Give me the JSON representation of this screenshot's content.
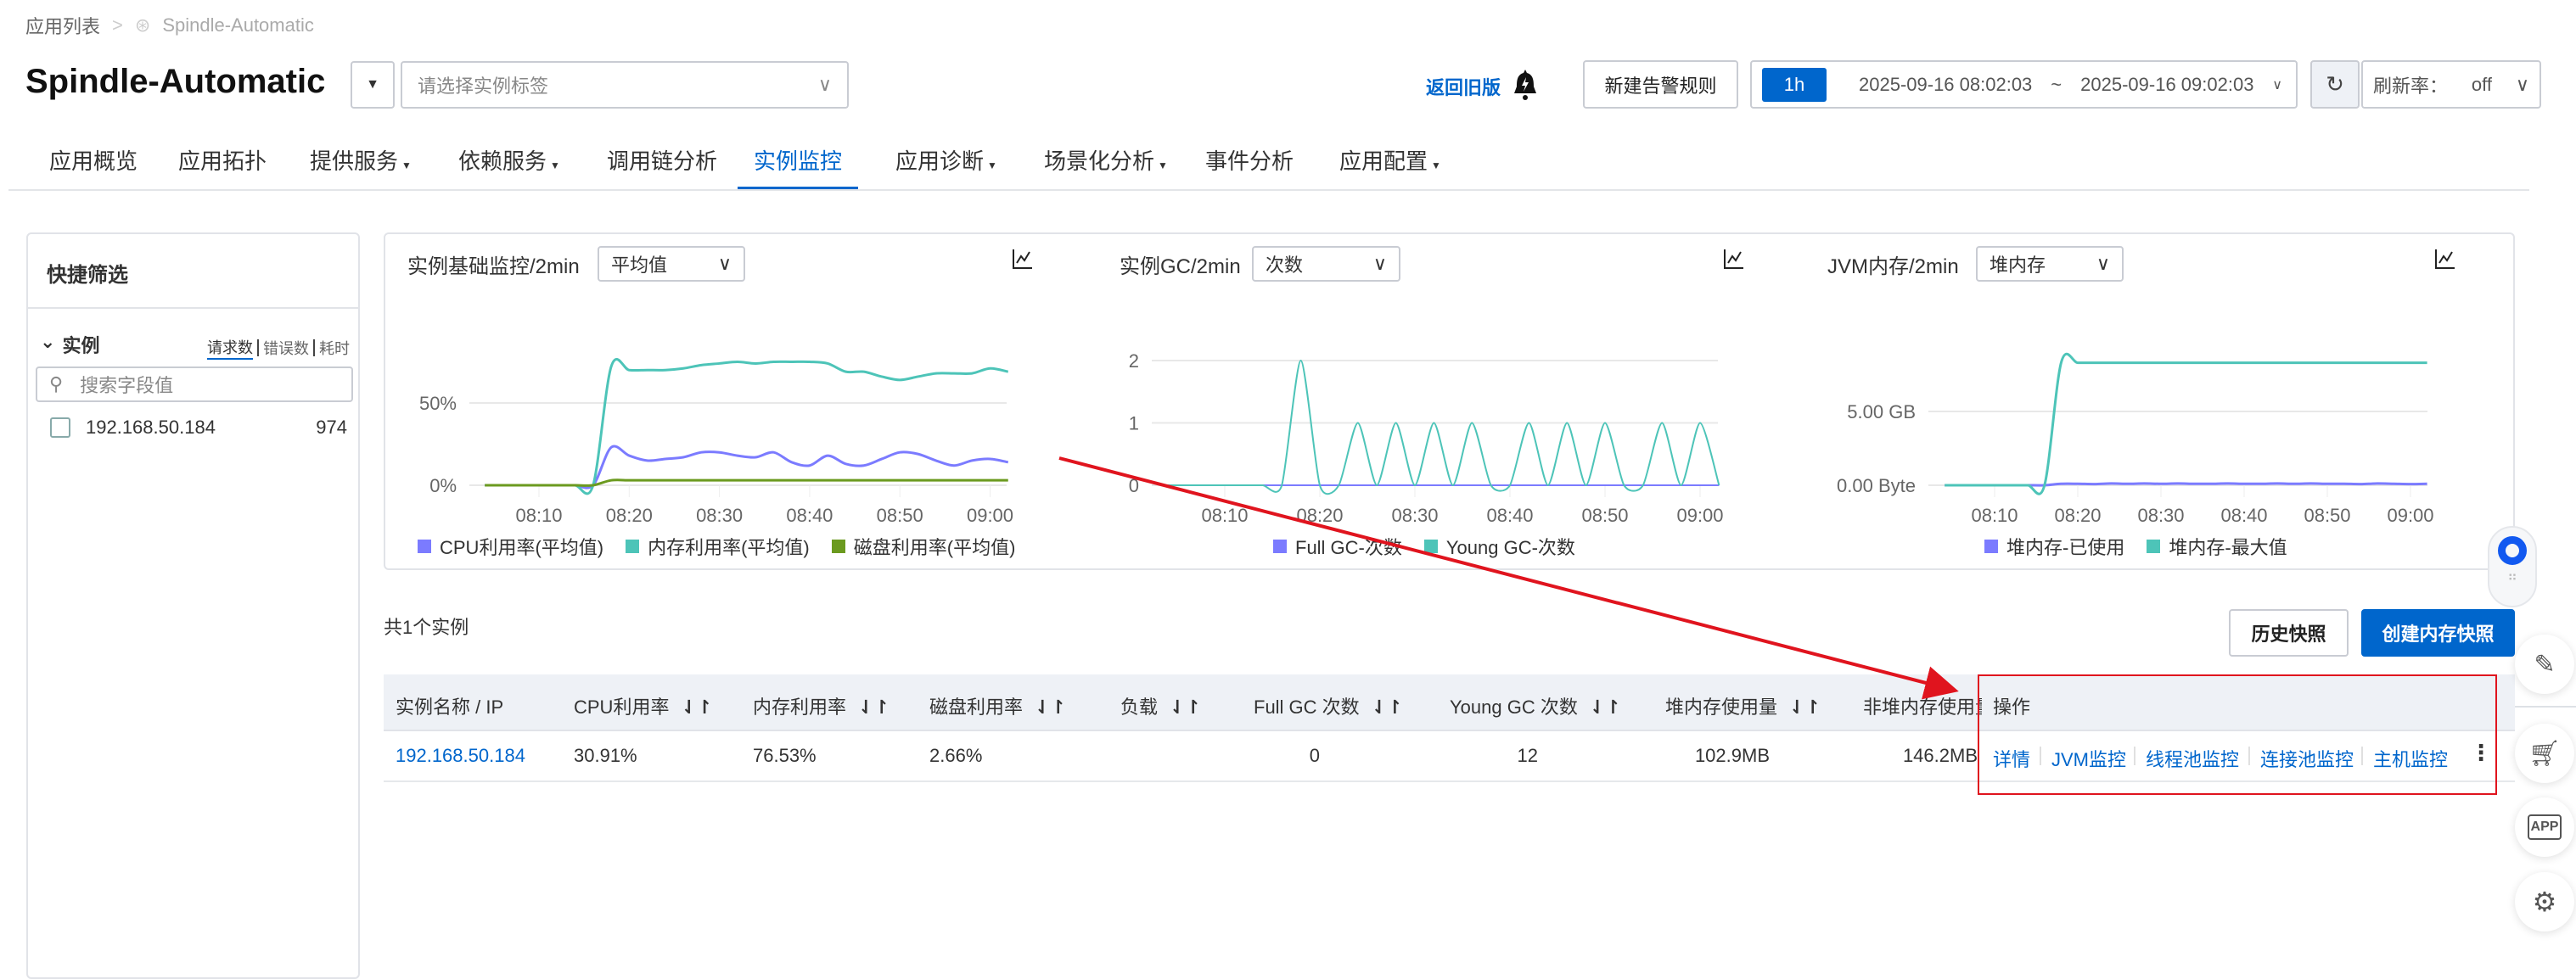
{
  "breadcrumb": {
    "root": "应用列表",
    "current": "Spindle-Automatic"
  },
  "header": {
    "app_title": "Spindle-Automatic",
    "tag_placeholder": "请选择实例标签",
    "back_old": "返回旧版",
    "new_alert": "新建告警规则",
    "time_preset": "1h",
    "time_start": "2025-09-16 08:02:03",
    "time_sep": "~",
    "time_end": "2025-09-16 09:02:03",
    "refresh_label": "刷新率：",
    "refresh_value": "off"
  },
  "nav": {
    "active": 5,
    "tabs": [
      {
        "label": "应用概览",
        "dropdown": false
      },
      {
        "label": "应用拓扑",
        "dropdown": false
      },
      {
        "label": "提供服务",
        "dropdown": true
      },
      {
        "label": "依赖服务",
        "dropdown": true
      },
      {
        "label": "调用链分析",
        "dropdown": false
      },
      {
        "label": "实例监控",
        "dropdown": false
      },
      {
        "label": "应用诊断",
        "dropdown": true
      },
      {
        "label": "场景化分析",
        "dropdown": true
      },
      {
        "label": "事件分析",
        "dropdown": false
      },
      {
        "label": "应用配置",
        "dropdown": true
      }
    ]
  },
  "filter": {
    "title": "快捷筛选",
    "group": "实例",
    "metrics": [
      "请求数",
      "错误数",
      "耗时"
    ],
    "active_metric": 0,
    "search_placeholder": "搜索字段值",
    "items": [
      {
        "ip": "192.168.50.184",
        "count": "974",
        "checked": false
      }
    ]
  },
  "colors": {
    "accent": "#0066cc",
    "purple": "#7b7bff",
    "teal": "#4dc4b8",
    "green": "#6b9a1f",
    "annotation": "#e0141e"
  },
  "chart_data": [
    {
      "type": "line",
      "title": "实例基础监控/2min",
      "select": "平均值",
      "x": [
        "08:04",
        "08:06",
        "08:08",
        "08:10",
        "08:12",
        "08:14",
        "08:16",
        "08:18",
        "08:20",
        "08:22",
        "08:24",
        "08:26",
        "08:28",
        "08:30",
        "08:32",
        "08:34",
        "08:36",
        "08:38",
        "08:40",
        "08:42",
        "08:44",
        "08:46",
        "08:48",
        "08:50",
        "08:52",
        "08:54",
        "08:56",
        "08:58",
        "09:00",
        "09:02"
      ],
      "xticks": [
        "08:10",
        "08:20",
        "08:30",
        "08:40",
        "08:50",
        "09:00"
      ],
      "yticks": [
        {
          "v": 0,
          "label": "0%"
        },
        {
          "v": 50,
          "label": "50%"
        }
      ],
      "ylim": [
        0,
        100
      ],
      "grid": true,
      "legend": "bottom",
      "series": [
        {
          "name": "CPU利用率(平均值)",
          "color": "#7b7bff",
          "values": [
            0,
            0,
            0,
            0,
            0,
            0,
            0,
            23,
            18,
            15,
            16,
            17,
            20,
            20,
            18,
            17,
            20,
            14,
            12,
            18,
            13,
            12,
            16,
            20,
            19,
            15,
            12,
            15,
            16,
            14
          ]
        },
        {
          "name": "内存利用率(平均值)",
          "color": "#4dc4b8",
          "values": [
            0,
            0,
            0,
            0,
            0,
            0,
            0,
            72,
            70,
            70,
            70,
            71,
            73,
            74,
            75,
            74,
            75,
            75,
            75,
            74,
            69,
            69,
            66,
            64,
            66,
            68,
            68,
            68,
            71,
            69
          ]
        },
        {
          "name": "磁盘利用率(平均值)",
          "color": "#6b9a1f",
          "values": [
            0,
            0,
            0,
            0,
            0,
            0,
            0,
            3,
            3,
            3,
            3,
            3,
            3,
            3,
            3,
            3,
            3,
            3,
            3,
            3,
            3,
            3,
            3,
            3,
            3,
            3,
            3,
            3,
            3,
            3
          ]
        }
      ]
    },
    {
      "type": "line",
      "title": "实例GC/2min",
      "select": "次数",
      "x": [
        "08:04",
        "08:06",
        "08:08",
        "08:10",
        "08:12",
        "08:14",
        "08:16",
        "08:18",
        "08:20",
        "08:22",
        "08:24",
        "08:26",
        "08:28",
        "08:30",
        "08:32",
        "08:34",
        "08:36",
        "08:38",
        "08:40",
        "08:42",
        "08:44",
        "08:46",
        "08:48",
        "08:50",
        "08:52",
        "08:54",
        "08:56",
        "08:58",
        "09:00",
        "09:02"
      ],
      "xticks": [
        "08:10",
        "08:20",
        "08:30",
        "08:40",
        "08:50",
        "09:00"
      ],
      "yticks": [
        {
          "v": 0,
          "label": "0"
        },
        {
          "v": 1,
          "label": "1"
        },
        {
          "v": 2,
          "label": "2"
        }
      ],
      "ylim": [
        0,
        2
      ],
      "grid": true,
      "legend": "bottom",
      "series": [
        {
          "name": "Full GC-次数",
          "color": "#7b7bff",
          "values": [
            0,
            0,
            0,
            0,
            0,
            0,
            0,
            0,
            0,
            0,
            0,
            0,
            0,
            0,
            0,
            0,
            0,
            0,
            0,
            0,
            0,
            0,
            0,
            0,
            0,
            0,
            0,
            0,
            0,
            0
          ]
        },
        {
          "name": "Young GC-次数",
          "color": "#4dc4b8",
          "values": [
            0,
            0,
            0,
            0,
            0,
            0,
            0,
            2,
            0,
            0,
            1,
            0,
            1,
            0,
            1,
            0,
            1,
            0,
            0,
            1,
            0,
            1,
            0,
            1,
            0,
            0,
            1,
            0,
            1,
            0
          ]
        }
      ]
    },
    {
      "type": "line",
      "title": "JVM内存/2min",
      "select": "堆内存",
      "x": [
        "08:04",
        "08:06",
        "08:08",
        "08:10",
        "08:12",
        "08:14",
        "08:16",
        "08:18",
        "08:20",
        "08:22",
        "08:24",
        "08:26",
        "08:28",
        "08:30",
        "08:32",
        "08:34",
        "08:36",
        "08:38",
        "08:40",
        "08:42",
        "08:44",
        "08:46",
        "08:48",
        "08:50",
        "08:52",
        "08:54",
        "08:56",
        "08:58",
        "09:00",
        "09:02"
      ],
      "xticks": [
        "08:10",
        "08:20",
        "08:30",
        "08:40",
        "08:50",
        "09:00"
      ],
      "yticks": [
        {
          "v": 0,
          "label": "0.00 Byte"
        },
        {
          "v": 5,
          "label": "5.00 GB"
        }
      ],
      "ylim": [
        0,
        10
      ],
      "unit": "GB",
      "grid": true,
      "legend": "bottom",
      "series": [
        {
          "name": "堆内存-已使用",
          "color": "#7b7bff",
          "values": [
            0,
            0,
            0,
            0,
            0,
            0,
            0,
            0.1,
            0.1,
            0.08,
            0.12,
            0.1,
            0.12,
            0.1,
            0.12,
            0.1,
            0.1,
            0.12,
            0.1,
            0.1,
            0.12,
            0.1,
            0.12,
            0.1,
            0.1,
            0.08,
            0.12,
            0.1,
            0.08,
            0.1
          ]
        },
        {
          "name": "堆内存-最大值",
          "color": "#4dc4b8",
          "values": [
            0,
            0,
            0,
            0,
            0,
            0,
            0,
            8.3,
            8.3,
            8.3,
            8.3,
            8.3,
            8.3,
            8.3,
            8.3,
            8.3,
            8.3,
            8.3,
            8.3,
            8.3,
            8.3,
            8.3,
            8.3,
            8.3,
            8.3,
            8.3,
            8.3,
            8.3,
            8.3,
            8.3
          ]
        }
      ]
    }
  ],
  "instances": {
    "count_label": "共1个实例",
    "history_btn": "历史快照",
    "create_btn": "创建内存快照",
    "columns": [
      "实例名称 / IP",
      "CPU利用率",
      "内存利用率",
      "磁盘利用率",
      "负载",
      "Full GC 次数",
      "Young GC 次数",
      "堆内存使用量",
      "非堆内存使用量",
      "操作"
    ],
    "rows": [
      {
        "ip": "192.168.50.184",
        "cpu": "30.91%",
        "mem": "76.53%",
        "disk": "2.66%",
        "load": "",
        "full_gc": "0",
        "young_gc": "12",
        "heap": "102.9MB",
        "nonheap": "146.2MB"
      }
    ],
    "actions": [
      "详情",
      "JVM监控",
      "线程池监控",
      "连接池监控",
      "主机监控"
    ]
  },
  "side_tools": [
    "assistant-logo-icon",
    "pencil-icon",
    "cart-icon",
    "app-icon",
    "gear-icon"
  ]
}
